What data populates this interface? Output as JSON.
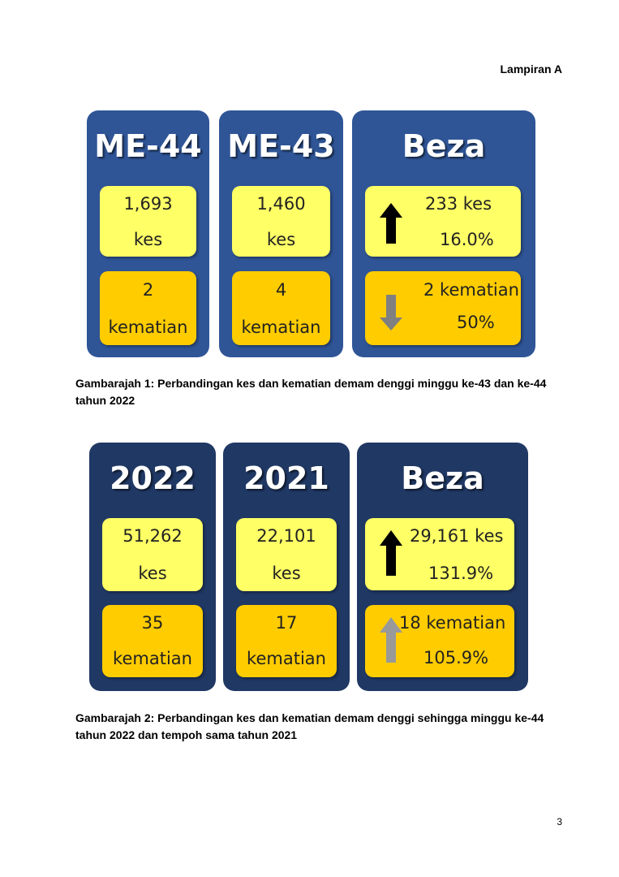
{
  "page": {
    "header": "Lampiran A",
    "page_number": "3"
  },
  "figure1": {
    "caption": "Gambarajah 1: Perbandingan kes dan kematian demam denggi minggu ke-43 dan ke-44 tahun 2022",
    "panels": [
      {
        "title": "ME-44",
        "cases_value": "1,693",
        "cases_unit": "kes",
        "deaths_value": "2",
        "deaths_unit": "kematian"
      },
      {
        "title": "ME-43",
        "cases_value": "1,460",
        "cases_unit": "kes",
        "deaths_value": "4",
        "deaths_unit": "kematian"
      }
    ],
    "diff": {
      "title": "Beza",
      "cases": "233 kes",
      "cases_pct": "16.0%",
      "cases_trend": "up",
      "deaths": "2 kematian",
      "deaths_pct": "50%",
      "deaths_trend": "down"
    }
  },
  "figure2": {
    "caption": "Gambarajah 2: Perbandingan kes dan kematian demam denggi sehingga minggu ke-44 tahun 2022 dan tempoh sama tahun 2021",
    "panels": [
      {
        "title": "2022",
        "cases_value": "51,262",
        "cases_unit": "kes",
        "deaths_value": "35",
        "deaths_unit": "kematian"
      },
      {
        "title": "2021",
        "cases_value": "22,101",
        "cases_unit": "kes",
        "deaths_value": "17",
        "deaths_unit": "kematian"
      }
    ],
    "diff": {
      "title": "Beza",
      "cases": "29,161 kes",
      "cases_pct": "131.9%",
      "cases_trend": "up",
      "deaths": "18 kematian",
      "deaths_pct": "105.9%",
      "deaths_trend": "up"
    }
  },
  "colors": {
    "figure1_panel": "#2f5597",
    "figure2_panel": "#203864",
    "cases_box": "#ffff66",
    "deaths_box": "#ffcc00",
    "arrow_cases": "#000000",
    "arrow_deaths": "#808080"
  },
  "icons": {
    "cases_arrow": "arrow-up-icon",
    "deaths_arrow_fig1": "arrow-down-icon",
    "deaths_arrow_fig2": "arrow-up-icon"
  }
}
